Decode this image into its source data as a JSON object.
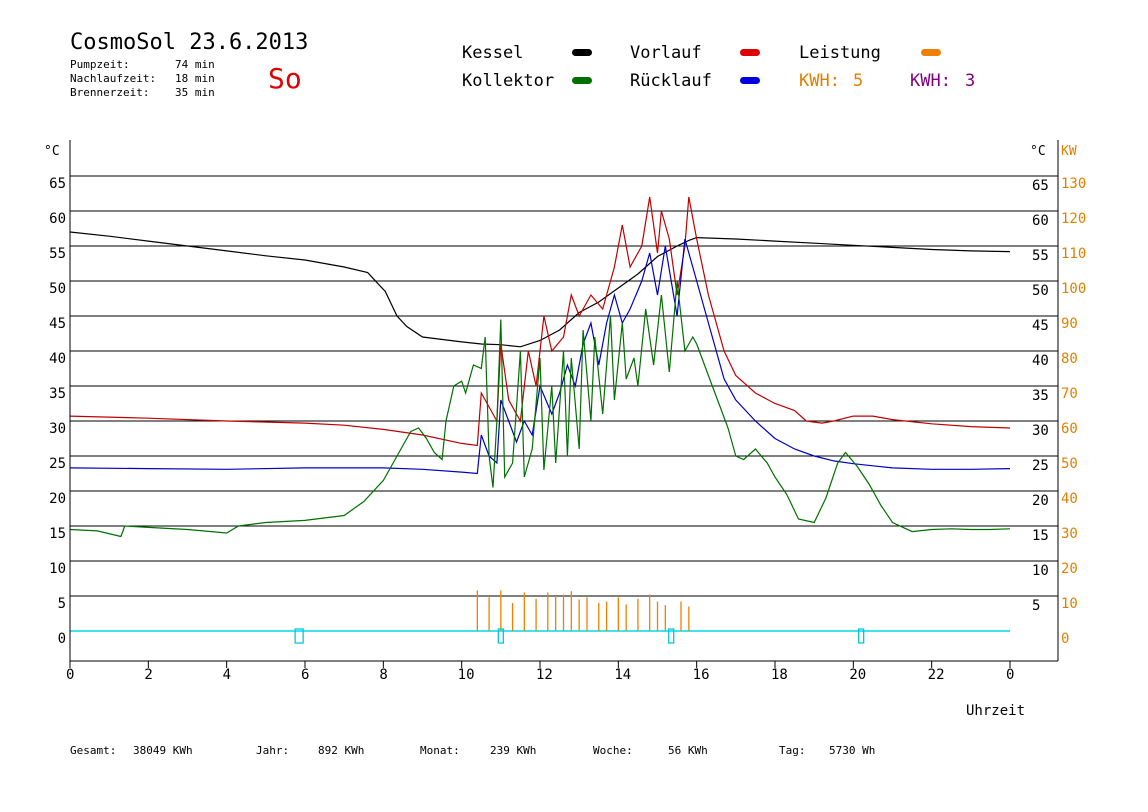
{
  "header": {
    "title": "CosmoSol 23.6.2013",
    "day_code": "So",
    "stats": [
      {
        "label": "Pumpzeit:",
        "value": "74 min"
      },
      {
        "label": "Nachlaufzeit:",
        "value": "18 min"
      },
      {
        "label": "Brennerzeit:",
        "value": "35 min"
      }
    ]
  },
  "legend": {
    "kessel": {
      "label": "Kessel",
      "color": "#000000"
    },
    "kollektor": {
      "label": "Kollektor",
      "color": "#007000"
    },
    "vorlauf": {
      "label": "Vorlauf",
      "color": "#e00000"
    },
    "ruecklauf": {
      "label": "Rücklauf",
      "color": "#0000e0"
    },
    "leistung": {
      "label": "Leistung",
      "color": "#f08000"
    },
    "kwh1": {
      "label": "KWH:",
      "value": "5",
      "color": "#f08000"
    },
    "kwh2": {
      "label": "KWH:",
      "value": "3",
      "color": "#800080"
    }
  },
  "footer": [
    {
      "label": "Gesamt:",
      "value": "38049 KWh"
    },
    {
      "label": "Jahr:",
      "value": "892 KWh"
    },
    {
      "label": "Monat:",
      "value": "239 KWh"
    },
    {
      "label": "Woche:",
      "value": "56 KWh"
    },
    {
      "label": "Tag:",
      "value": "5730 Wh"
    }
  ],
  "chart_data": {
    "type": "line",
    "xlabel": "Uhrzeit",
    "x_ticks": [
      "0",
      "2",
      "4",
      "6",
      "8",
      "10",
      "12",
      "14",
      "16",
      "18",
      "20",
      "22",
      "0"
    ],
    "xlim": [
      0,
      24
    ],
    "ylabel_left": "°C",
    "ylabel_right_temp": "°C",
    "ylabel_right_power": "KW",
    "ylim": [
      -4,
      70
    ],
    "y_ticks": [
      0,
      5,
      10,
      15,
      20,
      25,
      30,
      35,
      40,
      45,
      50,
      55,
      60,
      65
    ],
    "power_ticks": [
      0,
      10,
      20,
      30,
      40,
      50,
      60,
      70,
      80,
      90,
      100,
      110,
      120,
      130
    ],
    "grid": true,
    "series": [
      {
        "name": "Kessel",
        "color": "#000000",
        "points": [
          [
            0,
            57
          ],
          [
            1,
            56.4
          ],
          [
            2,
            55.7
          ],
          [
            3,
            55
          ],
          [
            4,
            54.3
          ],
          [
            5,
            53.6
          ],
          [
            6,
            53
          ],
          [
            7,
            52
          ],
          [
            7.6,
            51.2
          ],
          [
            8.05,
            48.5
          ],
          [
            8.35,
            45
          ],
          [
            8.6,
            43.5
          ],
          [
            9,
            42
          ],
          [
            10,
            41.3
          ],
          [
            10.5,
            41
          ],
          [
            11,
            40.9
          ],
          [
            11.5,
            40.6
          ],
          [
            12,
            41.5
          ],
          [
            12.5,
            43
          ],
          [
            13,
            45.5
          ],
          [
            13.5,
            47
          ],
          [
            14,
            49
          ],
          [
            14.5,
            51
          ],
          [
            15,
            53.5
          ],
          [
            15.5,
            55
          ],
          [
            15.8,
            55.8
          ],
          [
            16,
            56.2
          ],
          [
            17,
            56
          ],
          [
            18,
            55.7
          ],
          [
            19,
            55.4
          ],
          [
            20,
            55.1
          ],
          [
            21,
            54.8
          ],
          [
            22,
            54.5
          ],
          [
            23,
            54.3
          ],
          [
            24,
            54.2
          ]
        ]
      },
      {
        "name": "Vorlauf",
        "color": "#c00000",
        "points": [
          [
            0,
            30.7
          ],
          [
            2,
            30.4
          ],
          [
            4,
            30
          ],
          [
            6,
            29.7
          ],
          [
            7,
            29.4
          ],
          [
            8,
            28.8
          ],
          [
            9,
            28
          ],
          [
            10,
            26.8
          ],
          [
            10.4,
            26.5
          ],
          [
            10.5,
            34
          ],
          [
            10.7,
            32
          ],
          [
            10.9,
            30
          ],
          [
            11,
            41
          ],
          [
            11.2,
            33
          ],
          [
            11.5,
            30
          ],
          [
            11.7,
            40
          ],
          [
            11.9,
            35
          ],
          [
            12.1,
            45
          ],
          [
            12.3,
            40
          ],
          [
            12.6,
            42
          ],
          [
            12.8,
            48
          ],
          [
            13,
            45
          ],
          [
            13.3,
            48
          ],
          [
            13.6,
            46
          ],
          [
            13.9,
            52
          ],
          [
            14.1,
            58
          ],
          [
            14.3,
            52
          ],
          [
            14.6,
            55
          ],
          [
            14.8,
            62
          ],
          [
            15,
            54
          ],
          [
            15.1,
            60
          ],
          [
            15.3,
            56
          ],
          [
            15.5,
            48
          ],
          [
            15.7,
            55
          ],
          [
            15.8,
            62
          ],
          [
            16,
            56
          ],
          [
            16.3,
            48
          ],
          [
            16.7,
            40
          ],
          [
            17,
            36.5
          ],
          [
            17.5,
            34
          ],
          [
            18,
            32.5
          ],
          [
            18.5,
            31.5
          ],
          [
            18.8,
            30
          ],
          [
            19.2,
            29.7
          ],
          [
            19.5,
            30
          ],
          [
            20,
            30.7
          ],
          [
            20.5,
            30.7
          ],
          [
            21,
            30.2
          ],
          [
            22,
            29.6
          ],
          [
            23,
            29.2
          ],
          [
            24,
            29
          ]
        ]
      },
      {
        "name": "Rücklauf",
        "color": "#0000c0",
        "points": [
          [
            0,
            23.3
          ],
          [
            2,
            23.2
          ],
          [
            4,
            23.1
          ],
          [
            6,
            23.3
          ],
          [
            8,
            23.3
          ],
          [
            9,
            23.1
          ],
          [
            10,
            22.7
          ],
          [
            10.4,
            22.5
          ],
          [
            10.5,
            28
          ],
          [
            10.7,
            25
          ],
          [
            10.9,
            24
          ],
          [
            11,
            33
          ],
          [
            11.2,
            30
          ],
          [
            11.4,
            27
          ],
          [
            11.6,
            30
          ],
          [
            11.8,
            28
          ],
          [
            12,
            35
          ],
          [
            12.3,
            31
          ],
          [
            12.5,
            34
          ],
          [
            12.7,
            38
          ],
          [
            12.9,
            35
          ],
          [
            13.1,
            41
          ],
          [
            13.3,
            44
          ],
          [
            13.5,
            38
          ],
          [
            13.7,
            44
          ],
          [
            13.9,
            48
          ],
          [
            14.1,
            44
          ],
          [
            14.3,
            46
          ],
          [
            14.6,
            50
          ],
          [
            14.8,
            54
          ],
          [
            15,
            48
          ],
          [
            15.2,
            55
          ],
          [
            15.5,
            45
          ],
          [
            15.7,
            56
          ],
          [
            16,
            50
          ],
          [
            16.3,
            44
          ],
          [
            16.7,
            36
          ],
          [
            17,
            33
          ],
          [
            17.5,
            30
          ],
          [
            18,
            27.5
          ],
          [
            18.5,
            26
          ],
          [
            19,
            25
          ],
          [
            19.5,
            24.3
          ],
          [
            20,
            23.9
          ],
          [
            20.5,
            23.6
          ],
          [
            21,
            23.3
          ],
          [
            22,
            23.1
          ],
          [
            23,
            23.1
          ],
          [
            24,
            23.2
          ]
        ]
      },
      {
        "name": "Kollektor",
        "color": "#007000",
        "points": [
          [
            0,
            14.5
          ],
          [
            0.7,
            14.3
          ],
          [
            1.3,
            13.5
          ],
          [
            1.4,
            15
          ],
          [
            2,
            14.8
          ],
          [
            3,
            14.5
          ],
          [
            4,
            14
          ],
          [
            4.3,
            15
          ],
          [
            5,
            15.5
          ],
          [
            6,
            15.8
          ],
          [
            7,
            16.5
          ],
          [
            7.5,
            18.5
          ],
          [
            8,
            21.5
          ],
          [
            8.4,
            25.5
          ],
          [
            8.7,
            28.5
          ],
          [
            8.9,
            29
          ],
          [
            9.1,
            27.5
          ],
          [
            9.3,
            25.5
          ],
          [
            9.5,
            24.5
          ],
          [
            9.6,
            30
          ],
          [
            9.8,
            35
          ],
          [
            10,
            35.7
          ],
          [
            10.1,
            34
          ],
          [
            10.3,
            38
          ],
          [
            10.5,
            37.5
          ],
          [
            10.6,
            42
          ],
          [
            10.7,
            25
          ],
          [
            10.8,
            20.5
          ],
          [
            10.9,
            30
          ],
          [
            11,
            44.5
          ],
          [
            11.1,
            22
          ],
          [
            11.3,
            24
          ],
          [
            11.5,
            40
          ],
          [
            11.6,
            22
          ],
          [
            11.8,
            26
          ],
          [
            12,
            39
          ],
          [
            12.1,
            23
          ],
          [
            12.3,
            35
          ],
          [
            12.4,
            24
          ],
          [
            12.6,
            40
          ],
          [
            12.7,
            25
          ],
          [
            12.8,
            39
          ],
          [
            13,
            26
          ],
          [
            13.1,
            43
          ],
          [
            13.3,
            30
          ],
          [
            13.4,
            42
          ],
          [
            13.6,
            31
          ],
          [
            13.8,
            45
          ],
          [
            13.9,
            33
          ],
          [
            14.1,
            44
          ],
          [
            14.2,
            36
          ],
          [
            14.4,
            39
          ],
          [
            14.5,
            35
          ],
          [
            14.7,
            46
          ],
          [
            14.9,
            38
          ],
          [
            15.1,
            48
          ],
          [
            15.3,
            37
          ],
          [
            15.5,
            50
          ],
          [
            15.7,
            40
          ],
          [
            15.9,
            42
          ],
          [
            16,
            41
          ],
          [
            16.2,
            38
          ],
          [
            16.4,
            35
          ],
          [
            16.6,
            32
          ],
          [
            16.8,
            29
          ],
          [
            17,
            25
          ],
          [
            17.2,
            24.5
          ],
          [
            17.5,
            26
          ],
          [
            17.8,
            24
          ],
          [
            18,
            22
          ],
          [
            18.3,
            19.5
          ],
          [
            18.6,
            16
          ],
          [
            19,
            15.5
          ],
          [
            19.3,
            19
          ],
          [
            19.6,
            24
          ],
          [
            19.8,
            25.5
          ],
          [
            20.1,
            23.5
          ],
          [
            20.4,
            21
          ],
          [
            20.7,
            18
          ],
          [
            21,
            15.5
          ],
          [
            21.5,
            14.2
          ],
          [
            22,
            14.5
          ],
          [
            22.5,
            14.6
          ],
          [
            23,
            14.5
          ],
          [
            23.5,
            14.5
          ],
          [
            24,
            14.6
          ]
        ]
      },
      {
        "name": "Leistung",
        "color": "#f08000",
        "spikes": [
          [
            10.4,
            5.8
          ],
          [
            10.7,
            4.8
          ],
          [
            11,
            5.8
          ],
          [
            11.3,
            4
          ],
          [
            11.6,
            5.5
          ],
          [
            11.9,
            4.6
          ],
          [
            12.2,
            5.5
          ],
          [
            12.4,
            5
          ],
          [
            12.6,
            5.2
          ],
          [
            12.8,
            5.7
          ],
          [
            13,
            4.5
          ],
          [
            13.2,
            4.8
          ],
          [
            13.5,
            4
          ],
          [
            13.7,
            4.2
          ],
          [
            14,
            4.8
          ],
          [
            14.2,
            3.8
          ],
          [
            14.5,
            4.6
          ],
          [
            14.8,
            5.2
          ],
          [
            15,
            4.2
          ],
          [
            15.2,
            3.7
          ],
          [
            15.6,
            4.2
          ],
          [
            15.8,
            3.5
          ]
        ]
      }
    ],
    "burner_markers": [
      5.85,
      11,
      15.35,
      20.2
    ]
  }
}
